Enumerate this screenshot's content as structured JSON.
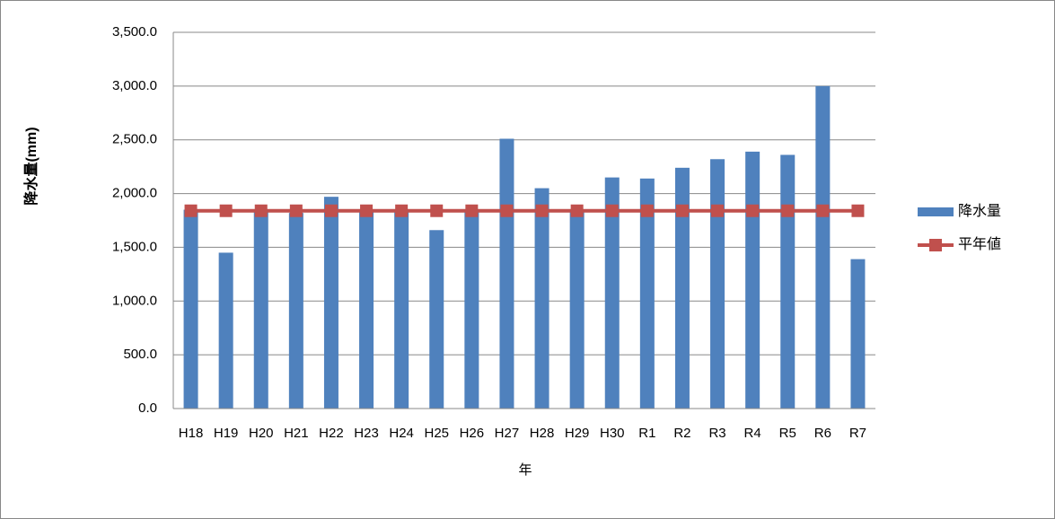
{
  "chart_data": {
    "type": "bar",
    "x_label": "年",
    "y_label": "降水量(mm)",
    "categories": [
      "H18",
      "H19",
      "H20",
      "H21",
      "H22",
      "H23",
      "H24",
      "H25",
      "H26",
      "H27",
      "H28",
      "H29",
      "H30",
      "R1",
      "R2",
      "R3",
      "R4",
      "R5",
      "R6",
      "R7"
    ],
    "series": [
      {
        "name": "降水量",
        "type": "bar",
        "color": "#4f81bd",
        "values": [
          1850,
          1450,
          1830,
          1820,
          1970,
          1840,
          1830,
          1660,
          1830,
          2510,
          2050,
          1840,
          2150,
          2140,
          2240,
          2320,
          2390,
          2360,
          3000,
          1390
        ]
      },
      {
        "name": "平年値",
        "type": "line",
        "color": "#c0504d",
        "values": [
          1840,
          1840,
          1840,
          1840,
          1840,
          1840,
          1840,
          1840,
          1840,
          1840,
          1840,
          1840,
          1840,
          1840,
          1840,
          1840,
          1840,
          1840,
          1840,
          1840
        ]
      }
    ],
    "ylim": [
      0,
      3500
    ],
    "yticks": [
      {
        "value": 0,
        "label": "0.0"
      },
      {
        "value": 500,
        "label": "500.0"
      },
      {
        "value": 1000,
        "label": "1,000.0"
      },
      {
        "value": 1500,
        "label": "1,500.0"
      },
      {
        "value": 2000,
        "label": "2,000.0"
      },
      {
        "value": 2500,
        "label": "2,500.0"
      },
      {
        "value": 3000,
        "label": "3,000.0"
      },
      {
        "value": 3500,
        "label": "3,500.0"
      }
    ],
    "grid": true,
    "legend": "right"
  }
}
